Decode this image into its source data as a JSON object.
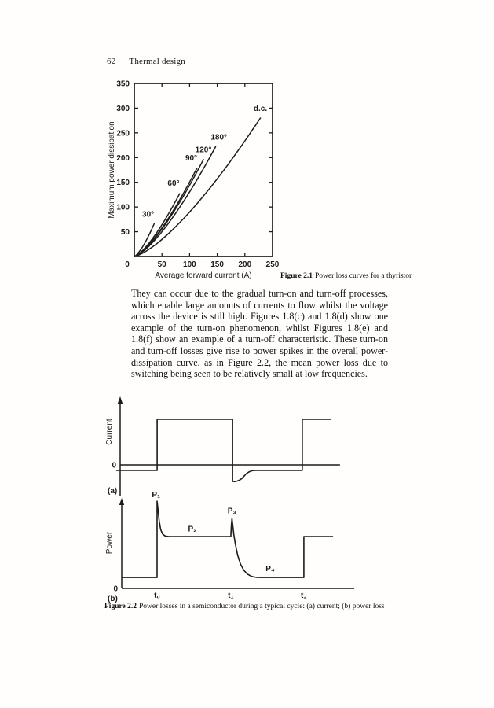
{
  "header": {
    "page_number": "62",
    "title": "Thermal design"
  },
  "paragraph": "They can occur due to the gradual turn-on and turn-off processes, which enable large amounts of currents to flow whilst the voltage across the device is still high. Figures 1.8(c) and 1.8(d) show one example of the turn-on phenomenon, whilst Figures 1.8(e) and 1.8(f) show an example of a turn-off characteristic. These turn-on and turn-off losses give rise to power spikes in the overall power-dissipation curve, as in Figure 2.2, the mean power loss due to switching being seen to be relatively small at low frequencies.",
  "figure_2_1": {
    "caption_label": "Figure 2.1",
    "caption_text": "Power loss curves for a thyristor"
  },
  "figure_2_2": {
    "caption_label": "Figure 2.2",
    "caption_text": "Power losses in a semiconductor during a typical cycle: (a) current; (b) power loss"
  },
  "chart_data": [
    {
      "id": "figure-2-1",
      "type": "line",
      "title": "Power loss curves for a thyristor",
      "xlabel": "Average forward current (A)",
      "ylabel": "Maximum power dissipation",
      "xlim": [
        0,
        250
      ],
      "ylim": [
        0,
        350
      ],
      "xticks": [
        0,
        50,
        100,
        150,
        200,
        250
      ],
      "yticks": [
        0,
        50,
        100,
        150,
        200,
        250,
        300,
        350
      ],
      "grid": false,
      "legend_position": "inline curve labels",
      "curve_exponent": 1.38,
      "series": [
        {
          "name": "30°",
          "end": [
            36,
            66
          ],
          "label_at": [
            25,
            80
          ]
        },
        {
          "name": "60°",
          "end": [
            82,
            127
          ],
          "label_at": [
            71,
            143
          ]
        },
        {
          "name": "90°",
          "end": [
            113,
            178
          ],
          "label_at": [
            103,
            194
          ]
        },
        {
          "name": "120°",
          "end": [
            125,
            196
          ],
          "label_at": [
            125,
            211
          ]
        },
        {
          "name": "180°",
          "end": [
            147,
            222
          ],
          "label_at": [
            153,
            236
          ]
        },
        {
          "name": "d.c.",
          "end": [
            228,
            280
          ],
          "label_at": [
            228,
            294
          ]
        }
      ]
    },
    {
      "id": "figure-2-2",
      "type": "line",
      "title": "Power losses in a semiconductor during a typical cycle",
      "x_unit": "time (normalized 0–100, t₀=15, t₁=46.3, t₂=77.3)",
      "panels": [
        {
          "name": "(a) current",
          "panel_label": "(a)",
          "ylabel": "Current",
          "zero_label": "0",
          "axis_line": {
            "from": 0,
            "to": 93.3
          },
          "waveform": [
            [
              -1.7,
              -0.12
            ],
            [
              15.7,
              -0.12
            ],
            [
              15.7,
              1
            ],
            [
              47.7,
              1
            ],
            [
              47.7,
              -0.36
            ],
            [
              48.6,
              -0.365
            ],
            [
              49.6,
              -0.355
            ],
            [
              50.6,
              -0.335
            ],
            [
              51.6,
              -0.3
            ],
            [
              52.6,
              -0.245
            ],
            [
              53.6,
              -0.19
            ],
            [
              54.6,
              -0.155
            ],
            [
              55.8,
              -0.13
            ],
            [
              57.2,
              -0.12
            ],
            [
              77.3,
              -0.12
            ],
            [
              77.3,
              1
            ],
            [
              89.7,
              1
            ]
          ],
          "xticks": [],
          "annotations": []
        },
        {
          "name": "(b) power loss",
          "panel_label": "(b)",
          "ylabel": "Power",
          "zero_label": "0",
          "axis_line": {
            "from": 0,
            "to": 98.7
          },
          "waveform": [
            [
              0,
              0.21
            ],
            [
              15,
              0.21
            ],
            [
              15,
              1.68
            ],
            [
              15.4,
              1.52
            ],
            [
              15.9,
              1.3
            ],
            [
              16.5,
              1.14
            ],
            [
              17.3,
              1.05
            ],
            [
              18.4,
              1.01
            ],
            [
              20,
              1
            ],
            [
              46.3,
              1
            ],
            [
              46.55,
              1.22
            ],
            [
              46.8,
              1.35
            ],
            [
              47.1,
              1.22
            ],
            [
              47.6,
              1.03
            ],
            [
              48.2,
              0.86
            ],
            [
              49.2,
              0.64
            ],
            [
              50.4,
              0.47
            ],
            [
              51.8,
              0.35
            ],
            [
              53.4,
              0.275
            ],
            [
              55.2,
              0.23
            ],
            [
              57,
              0.213
            ],
            [
              58.6,
              0.21
            ],
            [
              77.3,
              0.21
            ],
            [
              77.3,
              1
            ],
            [
              89.7,
              1
            ]
          ],
          "xticks": [
            {
              "label": "t₀",
              "x": 15
            },
            {
              "label": "t₁",
              "x": 46.3
            },
            {
              "label": "t₂",
              "x": 77.3
            }
          ],
          "annotations": [
            {
              "text": "P₁",
              "x": 14.6,
              "y": 1.76
            },
            {
              "text": "P₂",
              "x": 30,
              "y": 1.1
            },
            {
              "text": "P₃",
              "x": 46.8,
              "y": 1.45
            },
            {
              "text": "P₄",
              "x": 63,
              "y": 0.33
            }
          ]
        }
      ]
    }
  ]
}
